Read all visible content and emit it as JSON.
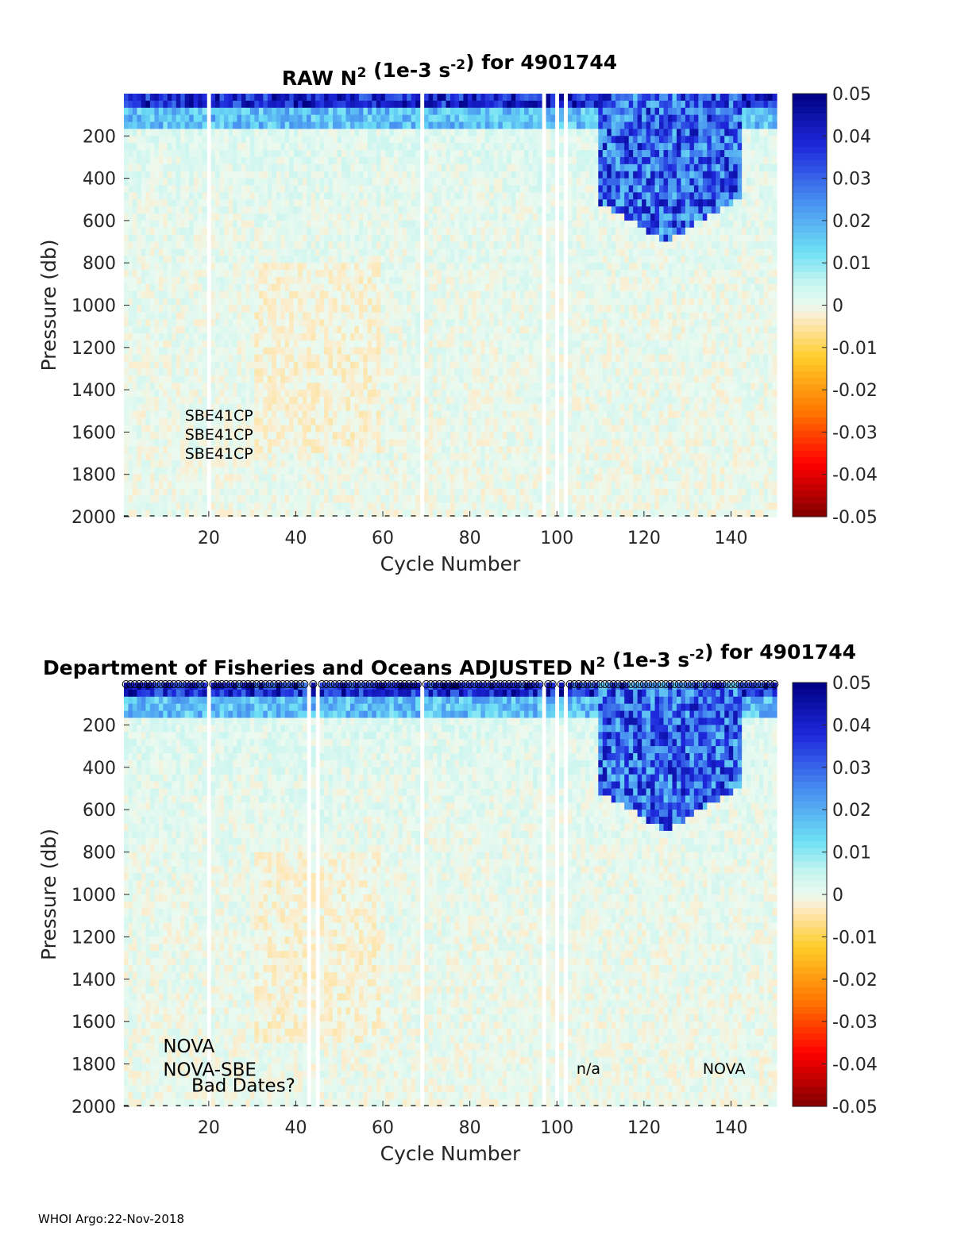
{
  "chart_data": [
    {
      "type": "heatmap",
      "title": {
        "prefix": "RAW N",
        "sup1": "2",
        "mid": " (1e-3 s",
        "sup2": "-2",
        "suffix": ") for 4901744"
      },
      "xlabel": "Cycle Number",
      "ylabel": "Pressure (db)",
      "xlim": [
        1,
        150
      ],
      "ylim": [
        2000,
        0
      ],
      "xticks": [
        20,
        40,
        60,
        80,
        100,
        120,
        140
      ],
      "yticks": [
        200,
        400,
        600,
        800,
        1000,
        1200,
        1400,
        1600,
        1800,
        2000
      ],
      "colorbar": {
        "ticks": [
          "0.05",
          "0.04",
          "0.03",
          "0.02",
          "0.01",
          "0",
          "-0.01",
          "-0.02",
          "-0.03",
          "-0.04",
          "-0.05"
        ],
        "range": [
          -0.05,
          0.05
        ]
      },
      "missing_cycles": [
        20,
        69,
        97,
        100,
        102
      ],
      "annotations": [
        {
          "text": "SBE41CP",
          "x": 15,
          "y": 1520
        },
        {
          "text": "SBE41CP",
          "x": 15,
          "y": 1610
        },
        {
          "text": "SBE41CP",
          "x": 15,
          "y": 1700
        }
      ],
      "surface_markers": false
    },
    {
      "type": "heatmap",
      "title": {
        "prefix": "Department of Fisheries and Oceans  ADJUSTED N",
        "sup1": "2",
        "mid": " (1e-3 s",
        "sup2": "-2",
        "suffix": ") for 4901744"
      },
      "xlabel": "Cycle Number",
      "ylabel": "Pressure (db)",
      "xlim": [
        1,
        150
      ],
      "ylim": [
        2000,
        0
      ],
      "xticks": [
        20,
        40,
        60,
        80,
        100,
        120,
        140
      ],
      "yticks": [
        200,
        400,
        600,
        800,
        1000,
        1200,
        1400,
        1600,
        1800,
        2000
      ],
      "colorbar": {
        "ticks": [
          "0.05",
          "0.04",
          "0.03",
          "0.02",
          "0.01",
          "0",
          "-0.01",
          "-0.02",
          "-0.03",
          "-0.04",
          "-0.05"
        ],
        "range": [
          -0.05,
          0.05
        ]
      },
      "missing_cycles": [
        20,
        43,
        45,
        69,
        97,
        100,
        102
      ],
      "annotations": [
        {
          "text": "NOVA",
          "x": 10,
          "y": 1720,
          "size": "big"
        },
        {
          "text": "NOVA-SBE",
          "x": 10,
          "y": 1830,
          "size": "big"
        },
        {
          "text": "Bad Dates?",
          "x": 16.5,
          "y": 1905,
          "size": "big"
        },
        {
          "text": "n/a",
          "x": 105,
          "y": 1820
        },
        {
          "text": "NOVA",
          "x": 134,
          "y": 1820
        }
      ],
      "surface_markers": true
    }
  ],
  "footer": "WHOI Argo:22-Nov-2018"
}
